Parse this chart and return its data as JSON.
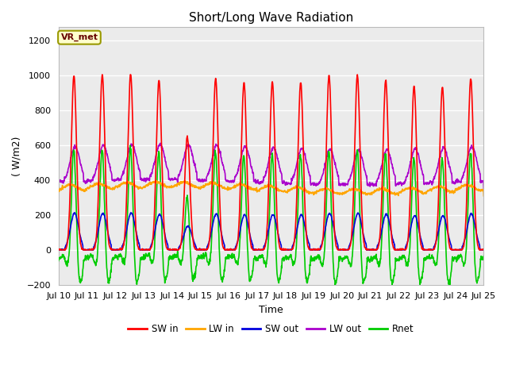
{
  "title": "Short/Long Wave Radiation",
  "ylabel": "( W/m2)",
  "xlabel": "Time",
  "annotation": "VR_met",
  "ylim": [
    -200,
    1280
  ],
  "yticks": [
    -200,
    0,
    200,
    400,
    600,
    800,
    1000,
    1200
  ],
  "start_day": 10,
  "end_day": 25,
  "dt_hours": 0.25,
  "lines": {
    "SW_in": {
      "color": "#ff0000",
      "label": "SW in",
      "lw": 1.2
    },
    "LW_in": {
      "color": "#ffa500",
      "label": "LW in",
      "lw": 1.2
    },
    "SW_out": {
      "color": "#0000dd",
      "label": "SW out",
      "lw": 1.2
    },
    "LW_out": {
      "color": "#aa00cc",
      "label": "LW out",
      "lw": 1.2
    },
    "Rnet": {
      "color": "#00cc00",
      "label": "Rnet",
      "lw": 1.2
    }
  },
  "facecolor": "#ebebeb",
  "grid_color": "#ffffff",
  "title_fontsize": 11,
  "axis_fontsize": 9,
  "tick_fontsize": 8
}
